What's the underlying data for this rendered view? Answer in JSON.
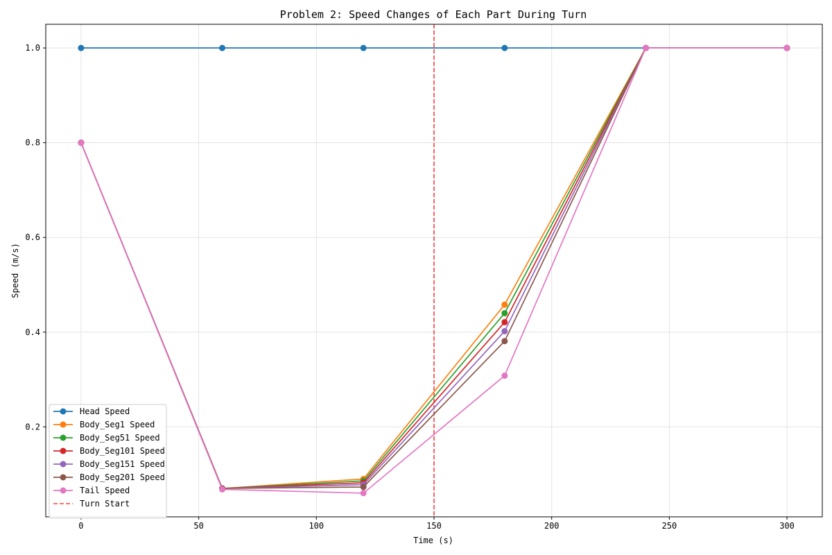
{
  "chart_data": {
    "type": "line",
    "title": "Problem 2: Speed Changes of Each Part During Turn",
    "xlabel": "Time (s)",
    "ylabel": "Speed (m/s)",
    "xlim": [
      -15,
      315
    ],
    "ylim": [
      0.01,
      1.05
    ],
    "xticks": [
      0,
      50,
      100,
      150,
      200,
      250,
      300
    ],
    "yticks": [
      0.2,
      0.4,
      0.6,
      0.8,
      1.0
    ],
    "xtick_labels": [
      "0",
      "50",
      "100",
      "150",
      "200",
      "250",
      "300"
    ],
    "ytick_labels": [
      "0.2",
      "0.4",
      "0.6",
      "0.8",
      "1.0"
    ],
    "grid": true,
    "legend_position": "lower-left",
    "x": [
      0,
      60,
      120,
      180,
      240,
      300
    ],
    "series": [
      {
        "name": "Head Speed",
        "color": "#1f77b4",
        "values": [
          1.0,
          1.0,
          1.0,
          1.0,
          1.0,
          1.0
        ]
      },
      {
        "name": "Body_Seg1 Speed",
        "color": "#ff7f0e",
        "values": [
          0.8,
          0.07,
          0.09,
          0.458,
          1.0,
          1.0
        ]
      },
      {
        "name": "Body_Seg51 Speed",
        "color": "#2ca02c",
        "values": [
          0.8,
          0.07,
          0.086,
          0.44,
          1.0,
          1.0
        ]
      },
      {
        "name": "Body_Seg101 Speed",
        "color": "#d62728",
        "values": [
          0.8,
          0.07,
          0.082,
          0.421,
          1.0,
          1.0
        ]
      },
      {
        "name": "Body_Seg151 Speed",
        "color": "#9467bd",
        "values": [
          0.8,
          0.07,
          0.078,
          0.402,
          1.0,
          1.0
        ]
      },
      {
        "name": "Body_Seg201 Speed",
        "color": "#8c564b",
        "values": [
          0.8,
          0.07,
          0.073,
          0.381,
          1.0,
          1.0
        ]
      },
      {
        "name": "Tail Speed",
        "color": "#e377c2",
        "values": [
          0.8,
          0.068,
          0.06,
          0.308,
          1.0,
          1.0
        ]
      }
    ],
    "vline": {
      "name": "Turn Start",
      "x": 150,
      "color": "#ff0000",
      "style": "dashed"
    }
  }
}
